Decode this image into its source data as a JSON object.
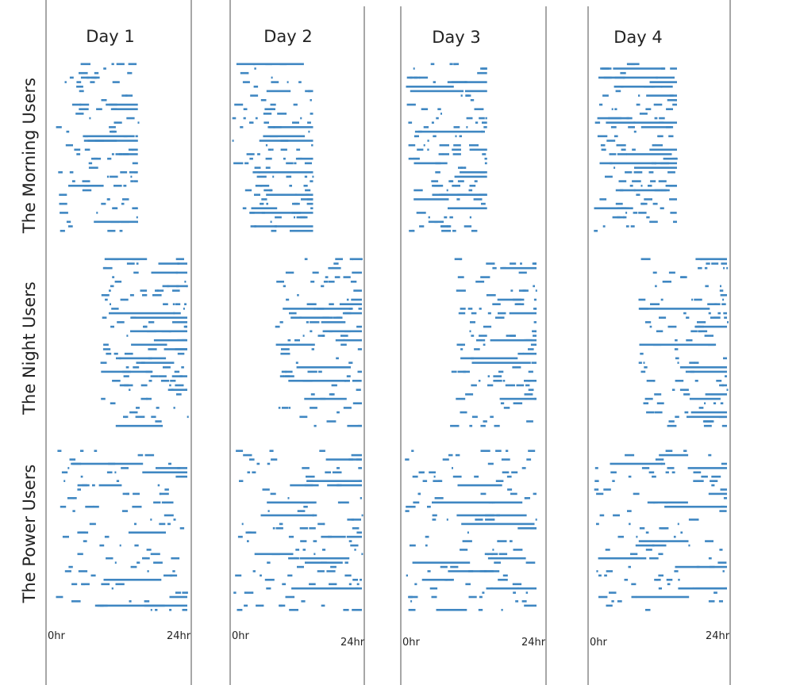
{
  "chart_data": {
    "type": "scatter",
    "mark": "horizontal activity segments per user (rows), 0-24h per day",
    "days": [
      "Day 1",
      "Day 2",
      "Day 3",
      "Day 4"
    ],
    "groups": [
      "The Morning Users",
      "The Night Users",
      "The Power Users"
    ],
    "x_axis": {
      "start_label": "0hr",
      "end_label": "24hr",
      "range": [
        0,
        24
      ]
    },
    "series_color": "#3f87c2",
    "rows_per_group": 38,
    "grid": false,
    "legend": "none",
    "activity_profile_hours": {
      "The Morning Users": [
        0,
        15
      ],
      "The Night Users": [
        8,
        24
      ],
      "The Power Users": [
        0,
        24
      ]
    }
  }
}
